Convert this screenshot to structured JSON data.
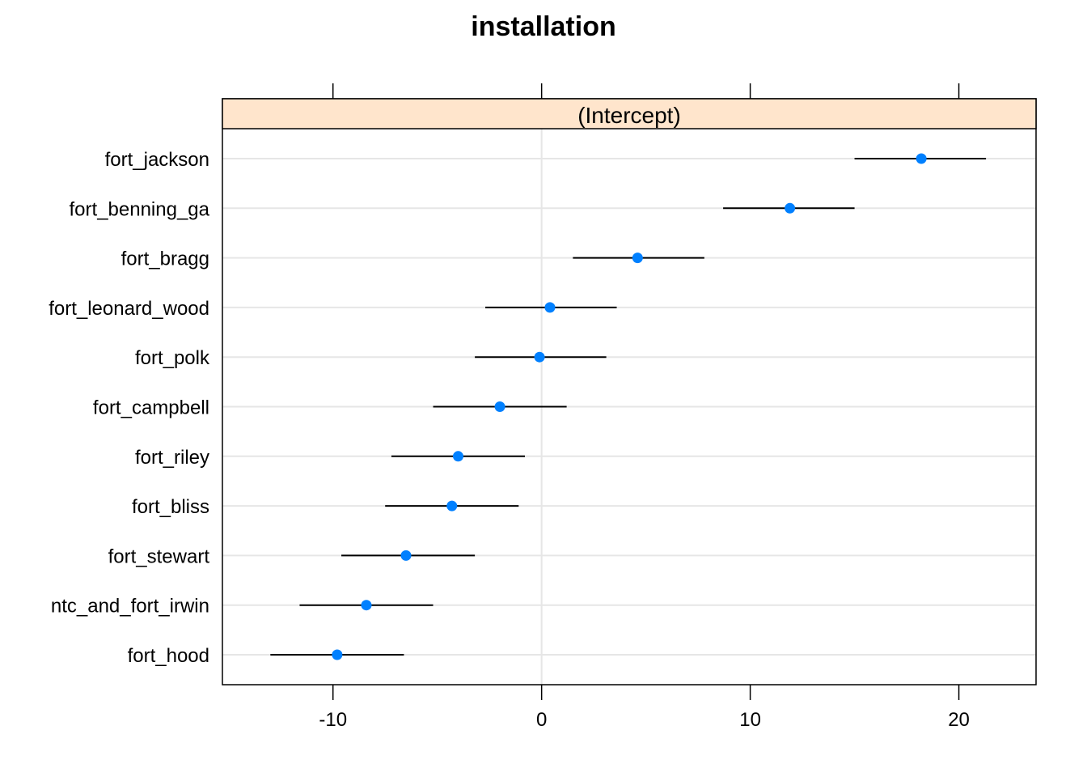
{
  "chart_data": {
    "type": "scatter",
    "title": "installation",
    "strip_label": "(Intercept)",
    "xlabel": "",
    "ylabel": "",
    "xlim": [
      -15.3,
      23.7
    ],
    "x_ticks": [
      -10,
      0,
      10,
      20
    ],
    "x_tick_labels": [
      "-10",
      "0",
      "10",
      "20"
    ],
    "categories": [
      "fort_jackson",
      "fort_benning_ga",
      "fort_bragg",
      "fort_leonard_wood",
      "fort_polk",
      "fort_campbell",
      "fort_riley",
      "fort_bliss",
      "fort_stewart",
      "ntc_and_fort_irwin",
      "fort_hood"
    ],
    "series": [
      {
        "values": [
          18.2,
          11.9,
          4.6,
          0.4,
          -0.1,
          -2.0,
          -4.0,
          -4.3,
          -6.5,
          -8.4,
          -9.8
        ],
        "lower": [
          15.0,
          8.7,
          1.5,
          -2.7,
          -3.2,
          -5.2,
          -7.2,
          -7.5,
          -9.6,
          -11.6,
          -13.0
        ],
        "upper": [
          21.3,
          15.0,
          7.8,
          3.6,
          3.1,
          1.2,
          -0.8,
          -1.1,
          -3.2,
          -5.2,
          -6.6
        ]
      }
    ],
    "grid": true,
    "colors": {
      "point": "#0080ff",
      "strip": "#ffe5cc",
      "grid": "#e6e6e6",
      "errorbar": "#000000"
    }
  }
}
